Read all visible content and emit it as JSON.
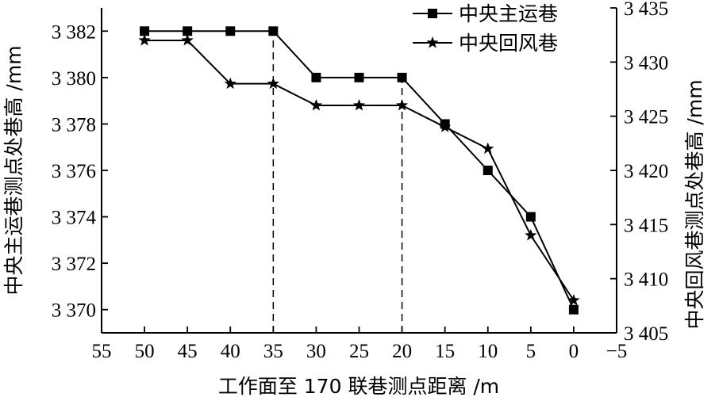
{
  "chart_data": {
    "type": "line",
    "xlabel": "工作面至 170 联巷测点距离 /m",
    "ylabel_left": "中央主运巷测点处巷高 /mm",
    "ylabel_right": "中央回风巷测点处巷高 /mm",
    "x_ticks": [
      "55",
      "50",
      "45",
      "40",
      "35",
      "30",
      "25",
      "20",
      "15",
      "10",
      "5",
      "0",
      "−5"
    ],
    "x_tick_values": [
      55,
      50,
      45,
      40,
      35,
      30,
      25,
      20,
      15,
      10,
      5,
      0,
      -5
    ],
    "y_left_ticks": [
      "3 370",
      "3 372",
      "3 374",
      "3 376",
      "3 378",
      "3 380",
      "3 382"
    ],
    "y_left_tick_values": [
      3370,
      3372,
      3374,
      3376,
      3378,
      3380,
      3382
    ],
    "y_right_ticks": [
      "3 405",
      "3 410",
      "3 415",
      "3 420",
      "3 425",
      "3 430",
      "3 435"
    ],
    "y_right_tick_values": [
      3405,
      3410,
      3415,
      3420,
      3425,
      3430,
      3435
    ],
    "xlim": [
      55,
      -5
    ],
    "ylim_left": [
      3369,
      3383
    ],
    "ylim_right": [
      3405,
      3435
    ],
    "x_reversed": true,
    "grid": false,
    "legend_position": "top-right",
    "reference_lines_x": [
      35,
      20
    ],
    "series": [
      {
        "name": "中央主运巷",
        "axis": "left",
        "marker": "square",
        "x": [
          50,
          45,
          40,
          35,
          30,
          25,
          20,
          15,
          10,
          5,
          0
        ],
        "values": [
          3382,
          3382,
          3382,
          3382,
          3380,
          3380,
          3380,
          3378,
          3376,
          3374,
          3370
        ]
      },
      {
        "name": "中央回风巷",
        "axis": "right",
        "marker": "star",
        "x": [
          50,
          45,
          40,
          35,
          30,
          25,
          20,
          15,
          10,
          5,
          0
        ],
        "values": [
          3432,
          3432,
          3428,
          3428,
          3426,
          3426,
          3426,
          3424,
          3422,
          3414,
          3408
        ]
      }
    ]
  }
}
